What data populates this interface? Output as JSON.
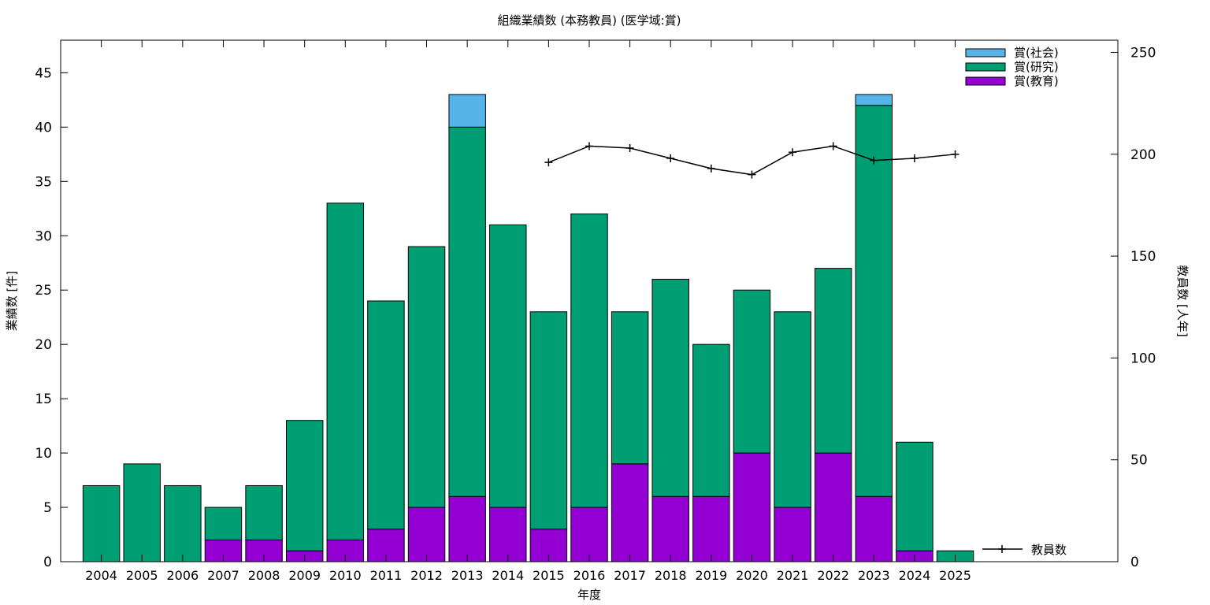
{
  "chart_data": {
    "type": "bar",
    "title": "組織業績数 (本務教員) (医学域:賞)",
    "xlabel": "年度",
    "ylabel": "業績数 [件]",
    "y2label": "教員数 [人年]",
    "categories": [
      "2004",
      "2005",
      "2006",
      "2007",
      "2008",
      "2009",
      "2010",
      "2011",
      "2012",
      "2013",
      "2014",
      "2015",
      "2016",
      "2017",
      "2018",
      "2019",
      "2020",
      "2021",
      "2022",
      "2023",
      "2024",
      "2025"
    ],
    "ylim": [
      0,
      48
    ],
    "y2lim": [
      0,
      256
    ],
    "yticks": [
      0,
      5,
      10,
      15,
      20,
      25,
      30,
      35,
      40,
      45
    ],
    "y2ticks": [
      0,
      50,
      100,
      150,
      200,
      250
    ],
    "stacked": true,
    "series": [
      {
        "name": "賞(教育)",
        "color": "#9400d3",
        "values": [
          0,
          0,
          0,
          2,
          2,
          1,
          2,
          3,
          5,
          6,
          5,
          3,
          5,
          9,
          6,
          6,
          10,
          5,
          10,
          6,
          1,
          0
        ]
      },
      {
        "name": "賞(研究)",
        "color": "#009e73",
        "values": [
          7,
          9,
          7,
          3,
          5,
          12,
          31,
          21,
          24,
          34,
          26,
          20,
          27,
          14,
          20,
          14,
          15,
          18,
          17,
          36,
          10,
          1
        ]
      },
      {
        "name": "賞(社会)",
        "color": "#56b4e9",
        "values": [
          0,
          0,
          0,
          0,
          0,
          0,
          0,
          0,
          0,
          3,
          0,
          0,
          0,
          0,
          0,
          0,
          0,
          0,
          0,
          1,
          0,
          0
        ]
      }
    ],
    "line_series": {
      "name": "教員数",
      "axis": "y2",
      "color": "#000000",
      "x": [
        "2015",
        "2016",
        "2017",
        "2018",
        "2019",
        "2020",
        "2021",
        "2022",
        "2023",
        "2024",
        "2025"
      ],
      "values": [
        196,
        204,
        203,
        198,
        193,
        190,
        201,
        204,
        197,
        198,
        200
      ]
    },
    "legend": [
      "賞(社会)",
      "賞(研究)",
      "賞(教育)"
    ],
    "legend_position": "top-right",
    "grid": false
  }
}
